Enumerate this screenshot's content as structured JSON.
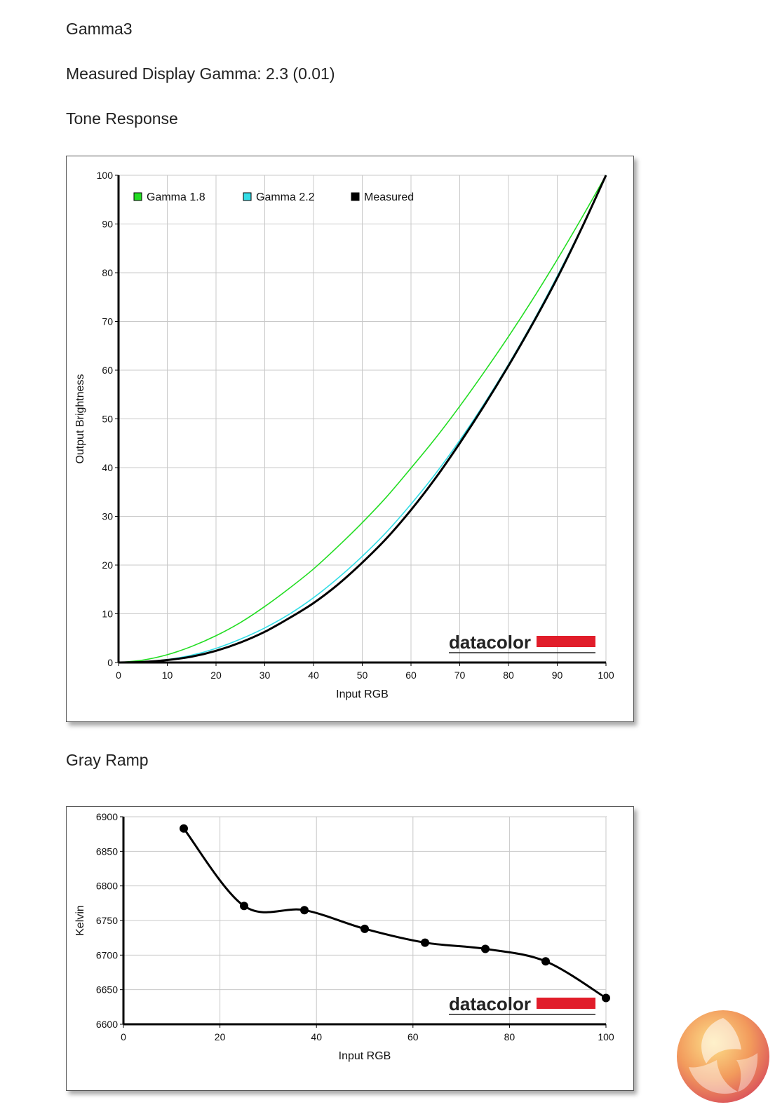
{
  "page": {
    "title": "Gamma3",
    "measured_gamma": "Measured Display Gamma: 2.3 (0.01)",
    "tone_heading": "Tone Response",
    "gray_heading": "Gray Ramp",
    "watermark": "datacolor"
  },
  "colors": {
    "gamma18": "#22dd22",
    "gamma22": "#33dde6",
    "measured": "#000000",
    "brand_red": "#e11d2a",
    "grid": "#c8c8c8"
  },
  "chart_data": [
    {
      "type": "line",
      "xlabel": "Input RGB",
      "ylabel": "Output Brightness",
      "xlim": [
        0,
        100
      ],
      "ylim": [
        0,
        100
      ],
      "xticks": [
        "0",
        "10",
        "20",
        "30",
        "40",
        "50",
        "60",
        "70",
        "80",
        "90",
        "100"
      ],
      "yticks": [
        "0",
        "10",
        "20",
        "30",
        "40",
        "50",
        "60",
        "70",
        "80",
        "90",
        "100"
      ],
      "grid": true,
      "legend_position": "top-left",
      "series": [
        {
          "name": "Gamma 1.8",
          "color": "#22dd22",
          "x": [
            0,
            5,
            10,
            15,
            20,
            25,
            30,
            35,
            40,
            45,
            50,
            55,
            60,
            65,
            70,
            75,
            80,
            85,
            90,
            95,
            100
          ],
          "y": [
            0,
            0.5,
            1.6,
            3.3,
            5.5,
            8.2,
            11.5,
            15.2,
            19.2,
            23.8,
            28.7,
            34.0,
            39.9,
            46.0,
            52.6,
            59.6,
            66.9,
            74.6,
            82.7,
            91.2,
            100
          ]
        },
        {
          "name": "Gamma 2.2",
          "color": "#33dde6",
          "x": [
            0,
            5,
            10,
            15,
            20,
            25,
            30,
            35,
            40,
            45,
            50,
            55,
            60,
            65,
            70,
            75,
            80,
            85,
            90,
            95,
            100
          ],
          "y": [
            0,
            0.1,
            0.6,
            1.5,
            2.9,
            4.8,
            7.1,
            9.9,
            13.3,
            17.3,
            21.8,
            26.8,
            32.5,
            38.7,
            45.6,
            53.1,
            61.2,
            69.9,
            79.3,
            89.3,
            100
          ]
        },
        {
          "name": "Measured",
          "color": "#000000",
          "x": [
            0,
            5,
            10,
            15,
            20,
            25,
            30,
            35,
            40,
            45,
            50,
            55,
            60,
            65,
            70,
            75,
            80,
            85,
            90,
            95,
            100
          ],
          "y": [
            0,
            0.1,
            0.5,
            1.2,
            2.4,
            4.1,
            6.3,
            9.1,
            12.2,
            16.0,
            20.5,
            25.5,
            31.3,
            37.8,
            45.0,
            52.7,
            60.9,
            69.6,
            78.9,
            89.1,
            100
          ]
        }
      ]
    },
    {
      "type": "line",
      "xlabel": "Input RGB",
      "ylabel": "Kelvin",
      "xlim": [
        0,
        100
      ],
      "ylim": [
        6600,
        6900
      ],
      "xticks": [
        "0",
        "20",
        "40",
        "60",
        "80",
        "100"
      ],
      "yticks": [
        "6600",
        "6650",
        "6700",
        "6750",
        "6800",
        "6850",
        "6900"
      ],
      "grid": true,
      "series": [
        {
          "color": "#000000",
          "x": [
            12.5,
            25,
            37.5,
            50,
            62.5,
            75,
            87.5,
            100
          ],
          "y": [
            6883,
            6771,
            6765,
            6738,
            6718,
            6709,
            6691,
            6638
          ]
        }
      ]
    }
  ]
}
